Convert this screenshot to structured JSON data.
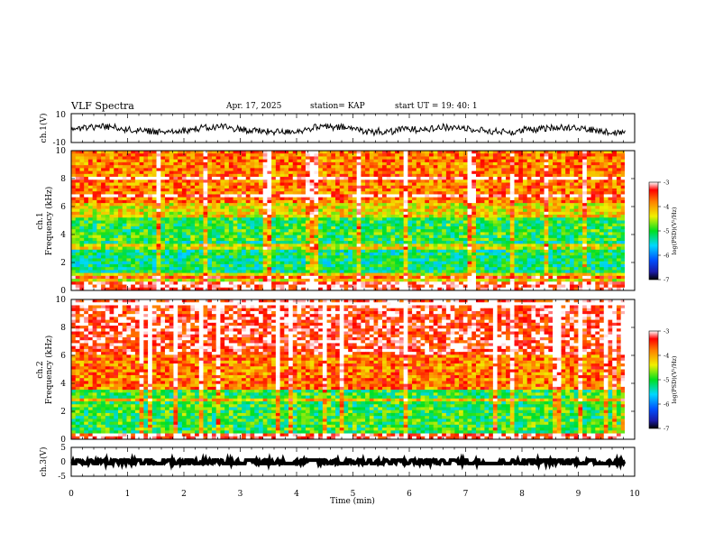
{
  "header": {
    "title": "VLF Spectra",
    "date": "Apr. 17, 2025",
    "station": "station= KAP",
    "start": "start  UT  =   19: 40: 1"
  },
  "colorbar": {
    "label": "log(PSD)(V²/Hz)",
    "ticks": [
      "-3",
      "-4",
      "-5",
      "-6",
      "-7"
    ],
    "range": [
      -7,
      -3
    ]
  },
  "chart_data": [
    {
      "type": "line",
      "panel": "ch1-waveform",
      "ylabel": "ch.1(V)",
      "ylim": [
        -10,
        10
      ],
      "yticks": [
        "10",
        "-10"
      ],
      "xlim": [
        0,
        10
      ],
      "series_range_approx": [
        -8,
        6
      ],
      "mean_approx": -1
    },
    {
      "type": "heatmap",
      "panel": "ch1-spectrogram",
      "ylabel_line1": "ch.1",
      "ylabel_line2": "Frequency (kHz)",
      "ylim": [
        0,
        10
      ],
      "yticks": [
        "0",
        "2",
        "4",
        "6",
        "8",
        "10"
      ],
      "xlim": [
        0,
        9.83
      ],
      "bands_khz": [
        {
          "from": 0.0,
          "to": 0.7,
          "level": -3.2
        },
        {
          "from": 0.7,
          "to": 1.2,
          "level": -4.3
        },
        {
          "from": 1.2,
          "to": 3.5,
          "level": -5.2
        },
        {
          "from": 3.5,
          "to": 5.3,
          "level": -5.0
        },
        {
          "from": 5.3,
          "to": 6.2,
          "level": -4.3
        },
        {
          "from": 6.2,
          "to": 10.0,
          "level": -3.8
        }
      ],
      "colorbar_range": [
        -7,
        -3
      ]
    },
    {
      "type": "heatmap",
      "panel": "ch2-spectrogram",
      "ylabel_line1": "ch.2",
      "ylabel_line2": "Frequency (kHz)",
      "ylim": [
        0,
        10
      ],
      "yticks": [
        "0",
        "2",
        "4",
        "6",
        "8",
        "10"
      ],
      "xlim": [
        0,
        9.83
      ],
      "bands_khz": [
        {
          "from": 0.0,
          "to": 0.5,
          "level": -3.2
        },
        {
          "from": 0.5,
          "to": 3.5,
          "level": -5.0
        },
        {
          "from": 3.5,
          "to": 6.0,
          "level": -3.8
        },
        {
          "from": 6.0,
          "to": 10.0,
          "level": -3.3
        }
      ],
      "colorbar_range": [
        -7,
        -3
      ]
    },
    {
      "type": "line",
      "panel": "ch3-waveform",
      "ylabel": "ch.3(V)",
      "ylim": [
        -5,
        5
      ],
      "yticks": [
        "5",
        "0",
        "-5"
      ],
      "xlim": [
        0,
        10
      ],
      "series_range_approx": [
        -0.6,
        0.6
      ],
      "mean_approx": 0
    }
  ],
  "xaxis": {
    "label": "Time (min)",
    "ticks": [
      "0",
      "1",
      "2",
      "3",
      "4",
      "5",
      "6",
      "7",
      "8",
      "9",
      "10"
    ],
    "range": [
      0,
      10
    ]
  }
}
